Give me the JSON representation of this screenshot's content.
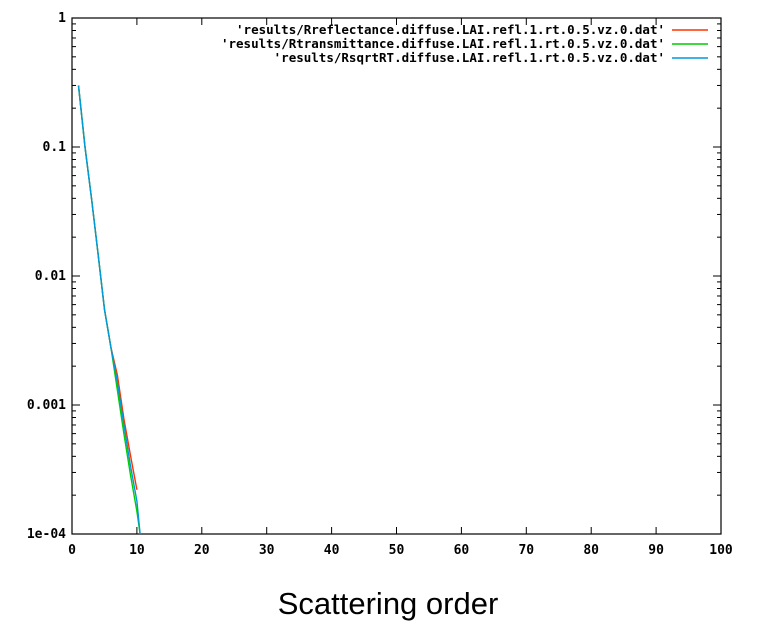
{
  "chart_data": {
    "type": "line",
    "xlabel": "Scattering order",
    "ylabel": "",
    "title": "",
    "xlim": [
      0,
      100
    ],
    "ylim": [
      0.0001,
      1
    ],
    "yscale": "log",
    "grid": false,
    "legend_position": "top-right",
    "x_ticks": [
      0,
      10,
      20,
      30,
      40,
      50,
      60,
      70,
      80,
      90,
      100
    ],
    "x_tick_labels": [
      "0",
      "10",
      "20",
      "30",
      "40",
      "50",
      "60",
      "70",
      "80",
      "90",
      "100"
    ],
    "y_ticks": [
      0.0001,
      0.001,
      0.01,
      0.1,
      1
    ],
    "y_tick_labels": [
      "1e-04",
      "0.001",
      "0.01",
      "0.1",
      "1"
    ],
    "series": [
      {
        "name": "'results/Rreflectance.diffuse.LAI.refl.1.rt.0.5.vz.0.dat'",
        "color": "#ff3300",
        "x": [
          1,
          2,
          3,
          4,
          5,
          6,
          7,
          8,
          9,
          10
        ],
        "y": [
          0.3,
          0.1,
          0.04,
          0.015,
          0.0055,
          0.0028,
          0.0017,
          0.00078,
          0.00041,
          0.00022
        ]
      },
      {
        "name": "'results/Rtransmittance.diffuse.LAI.refl.1.rt.0.5.vz.0.dat'",
        "color": "#00cc00",
        "x": [
          1,
          2,
          3,
          4,
          5,
          6,
          7,
          8,
          9,
          10,
          10.5
        ],
        "y": [
          0.3,
          0.1,
          0.04,
          0.015,
          0.0055,
          0.0028,
          0.0013,
          0.0006,
          0.00029,
          0.00015,
          0.0001
        ]
      },
      {
        "name": "'results/RsqrtRT.diffuse.LAI.refl.1.rt.0.5.vz.0.dat'",
        "color": "#0099dd",
        "x": [
          1,
          2,
          3,
          4,
          5,
          6,
          7,
          8,
          9,
          10,
          10.5
        ],
        "y": [
          0.3,
          0.1,
          0.04,
          0.015,
          0.0055,
          0.0028,
          0.0015,
          0.0007,
          0.00034,
          0.00018,
          0.0001
        ]
      }
    ]
  }
}
